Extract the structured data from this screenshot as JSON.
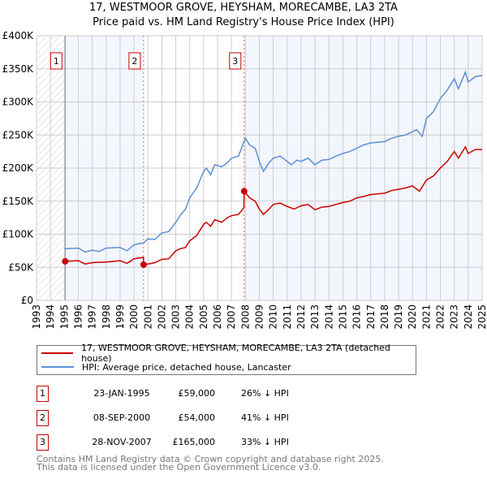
{
  "title": "17, WESTMOOR GROVE, HEYSHAM, MORECAMBE, LA3 2TA",
  "subtitle": "Price paid vs. HM Land Registry's House Price Index (HPI)",
  "chart_data": {
    "type": "line",
    "title": "17, WESTMOOR GROVE, HEYSHAM, MORECAMBE, LA3 2TA",
    "subtitle": "Price paid vs. HM Land Registry's House Price Index (HPI)",
    "xlim": [
      1993,
      2025
    ],
    "ylim": [
      0,
      400000
    ],
    "y_ticks": [
      0,
      50000,
      100000,
      150000,
      200000,
      250000,
      300000,
      350000,
      400000
    ],
    "y_tick_labels": [
      "£0",
      "£50K",
      "£100K",
      "£150K",
      "£200K",
      "£250K",
      "£300K",
      "£350K",
      "£400K"
    ],
    "x_tick_labels": [
      "1993",
      "1994",
      "1995",
      "1996",
      "1997",
      "1998",
      "1999",
      "2000",
      "2001",
      "2002",
      "2003",
      "2004",
      "2005",
      "2006",
      "2007",
      "2008",
      "2009",
      "2010",
      "2011",
      "2012",
      "2013",
      "2014",
      "2015",
      "2016",
      "2017",
      "2018",
      "2019",
      "2020",
      "2021",
      "2022",
      "2023",
      "2024",
      "2025"
    ],
    "grid": true,
    "series": [
      {
        "name": "HPI: Average price, detached house, Lancaster",
        "color": "#5b8fd4",
        "x": [
          1995,
          1996,
          1996.5,
          1997,
          1997.5,
          1998,
          1999,
          1999.5,
          2000,
          2000.7,
          2001,
          2001.5,
          2002,
          2002.5,
          2003,
          2003.3,
          2003.7,
          2004,
          2004.5,
          2005,
          2005.2,
          2005.5,
          2005.8,
          2006.3,
          2006.7,
          2007,
          2007.5,
          2008,
          2008.3,
          2008.7,
          2009,
          2009.3,
          2009.7,
          2010,
          2010.5,
          2011,
          2011.3,
          2011.7,
          2012,
          2012.5,
          2013,
          2013.5,
          2014,
          2014.5,
          2015,
          2015.5,
          2016,
          2016.5,
          2017,
          2017.5,
          2018,
          2018.5,
          2019,
          2019.5,
          2020,
          2020.3,
          2020.7,
          2021,
          2021.5,
          2022,
          2022.5,
          2023,
          2023.3,
          2023.8,
          2024,
          2024.5,
          2025
        ],
        "y": [
          78000,
          79000,
          73000,
          76000,
          74000,
          79000,
          80000,
          75000,
          84000,
          87000,
          93000,
          92000,
          102000,
          104000,
          118000,
          128000,
          138000,
          155000,
          170000,
          195000,
          200000,
          190000,
          205000,
          202000,
          208000,
          215000,
          218000,
          245000,
          235000,
          230000,
          210000,
          195000,
          208000,
          215000,
          218000,
          210000,
          205000,
          212000,
          210000,
          215000,
          205000,
          212000,
          213000,
          218000,
          222000,
          225000,
          230000,
          235000,
          238000,
          239000,
          240000,
          245000,
          248000,
          250000,
          255000,
          258000,
          248000,
          275000,
          285000,
          305000,
          318000,
          335000,
          320000,
          345000,
          330000,
          338000,
          340000
        ]
      },
      {
        "name": "17, WESTMOOR GROVE, HEYSHAM, MORECAMBE, LA3 2TA (detached house)",
        "color": "#cc0000",
        "x": [
          1995.06,
          1996,
          1996.5,
          1997,
          1998,
          1999,
          1999.5,
          2000,
          2000.68,
          2000.69,
          2001,
          2001.5,
          2002,
          2002.5,
          2003,
          2003.3,
          2003.7,
          2004,
          2004.5,
          2005,
          2005.2,
          2005.5,
          2005.8,
          2006.3,
          2006.7,
          2007,
          2007.5,
          2007.89,
          2007.91,
          2008.3,
          2008.7,
          2009,
          2009.3,
          2009.7,
          2010,
          2010.5,
          2011,
          2011.5,
          2012,
          2012.5,
          2013,
          2013.5,
          2014,
          2014.5,
          2015,
          2015.5,
          2016,
          2016.5,
          2017,
          2017.5,
          2018,
          2018.5,
          2019,
          2019.5,
          2020,
          2020.5,
          2021,
          2021.5,
          2022,
          2022.5,
          2023,
          2023.3,
          2023.8,
          2024,
          2024.5,
          2025
        ],
        "y": [
          59000,
          60000,
          55000,
          57000,
          58000,
          60000,
          56000,
          63000,
          65000,
          54000,
          55000,
          57000,
          62000,
          63000,
          75000,
          78000,
          80000,
          90000,
          98000,
          115000,
          118000,
          112000,
          122000,
          118000,
          125000,
          128000,
          130000,
          140000,
          165000,
          155000,
          150000,
          138000,
          130000,
          138000,
          145000,
          147000,
          142000,
          138000,
          143000,
          145000,
          137000,
          141000,
          142000,
          145000,
          148000,
          150000,
          155000,
          157000,
          160000,
          161000,
          162000,
          166000,
          168000,
          170000,
          173000,
          165000,
          182000,
          188000,
          200000,
          210000,
          225000,
          215000,
          232000,
          222000,
          228000,
          228000
        ]
      }
    ],
    "sales": [
      {
        "label": "1",
        "x": 1995.06,
        "price": 59000,
        "date": "23-JAN-1995",
        "price_text": "£59,000",
        "hpi": "26% ↓ HPI"
      },
      {
        "label": "2",
        "x": 2000.69,
        "price": 54000,
        "date": "08-SEP-2000",
        "price_text": "£54,000",
        "hpi": "41% ↓ HPI"
      },
      {
        "label": "3",
        "x": 2007.91,
        "price": 165000,
        "date": "28-NOV-2007",
        "price_text": "£165,000",
        "hpi": "33% ↓ HPI"
      }
    ],
    "legend_placement": "below"
  },
  "legend": {
    "property": "17, WESTMOOR GROVE, HEYSHAM, MORECAMBE, LA3 2TA (detached house)",
    "hpi": "HPI: Average price, detached house, Lancaster"
  },
  "footer": {
    "line1": "Contains HM Land Registry data © Crown copyright and database right 2025.",
    "line2": "This data is licensed under the Open Government Licence v3.0."
  }
}
